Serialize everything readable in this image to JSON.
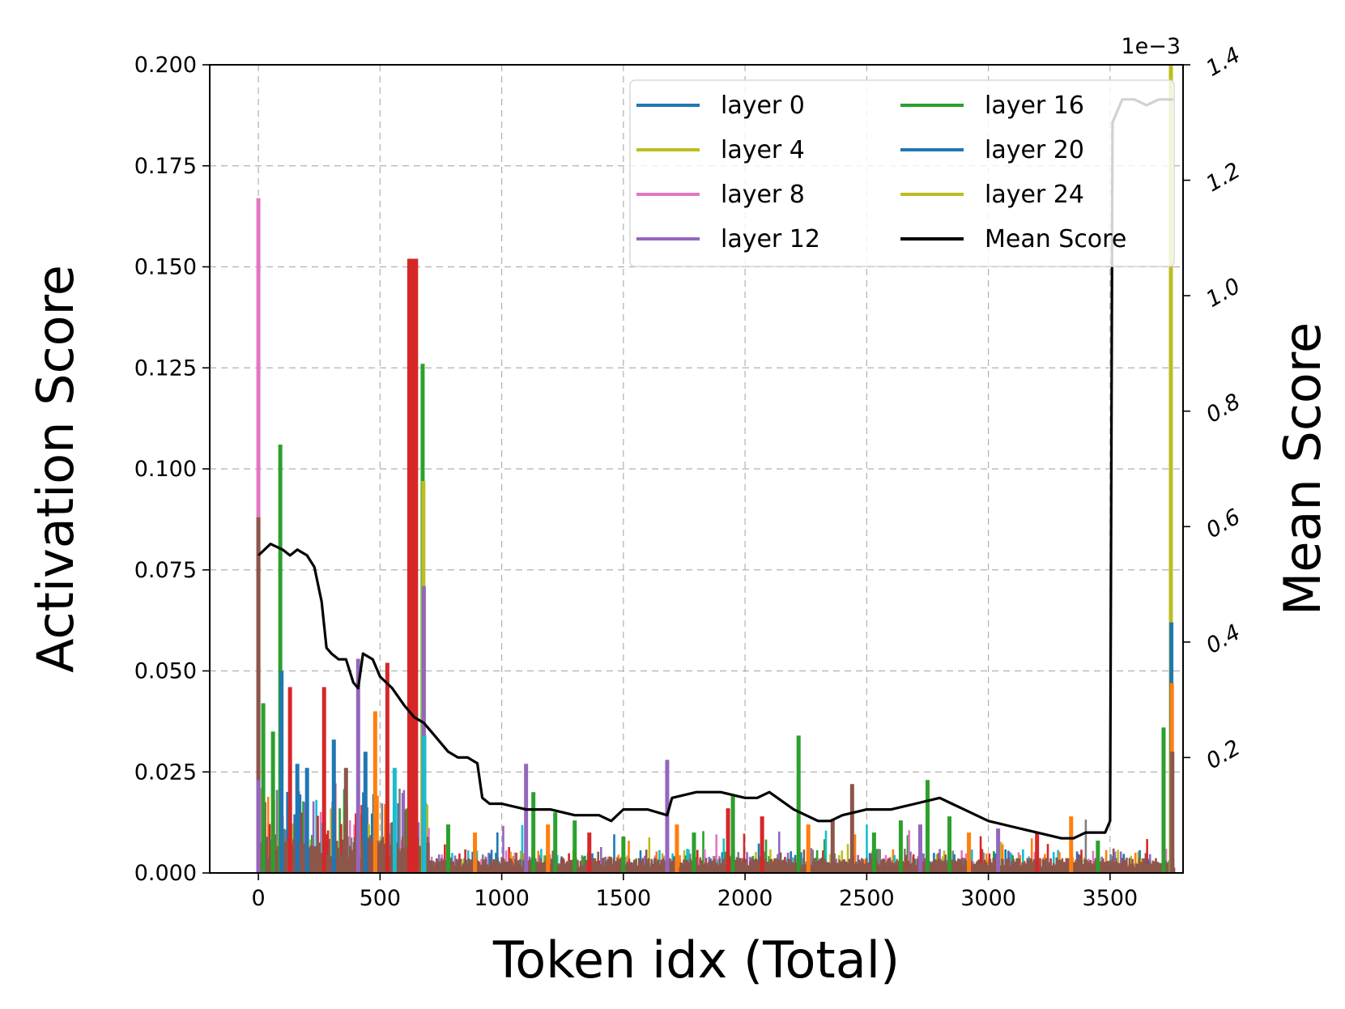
{
  "chart_data": {
    "type": "bar+line",
    "title": "",
    "xlabel": "Token idx (Total)",
    "ylabel": "Activation Score",
    "y2label": "Mean Score",
    "y2_offset_text": "1e−3",
    "xlim": [
      -200,
      3800
    ],
    "ylim": [
      0,
      0.2
    ],
    "y2lim": [
      0,
      1.4
    ],
    "x_ticks": [
      0,
      500,
      1000,
      1500,
      2000,
      2500,
      3000,
      3500
    ],
    "x_tick_labels": [
      "0",
      "500",
      "1000",
      "1500",
      "2000",
      "2500",
      "3000",
      "3500"
    ],
    "y_ticks": [
      0,
      0.025,
      0.05,
      0.075,
      0.1,
      0.125,
      0.15,
      0.175,
      0.2
    ],
    "y_tick_labels": [
      "0.000",
      "0.025",
      "0.050",
      "0.075",
      "0.100",
      "0.125",
      "0.150",
      "0.175",
      "0.200"
    ],
    "y2_ticks": [
      0.2,
      0.4,
      0.6,
      0.8,
      1.0,
      1.2,
      1.4
    ],
    "y2_tick_labels": [
      "0.2",
      "0.4",
      "0.6",
      "0.8",
      "1.0",
      "1.2",
      "1.4"
    ],
    "grid": true,
    "legend_position": "top-right",
    "legend": [
      {
        "label": "layer 0",
        "color": "#1f77b4"
      },
      {
        "label": "layer 16",
        "color": "#2ca02c"
      },
      {
        "label": "layer 4",
        "color": "#bcbd22"
      },
      {
        "label": "layer 20",
        "color": "#1f77b4"
      },
      {
        "label": "layer 8",
        "color": "#e377c2"
      },
      {
        "label": "layer 24",
        "color": "#bcbd22"
      },
      {
        "label": "layer 12",
        "color": "#9467bd"
      },
      {
        "label": "Mean Score",
        "color": "#000000"
      }
    ],
    "spike_series": [
      {
        "x": 0,
        "value": 0.167,
        "color": "#e377c2"
      },
      {
        "x": 0,
        "value": 0.088,
        "color": "#8c564b"
      },
      {
        "x": 0,
        "value": 0.023,
        "color": "#9467bd"
      },
      {
        "x": 20,
        "value": 0.042,
        "color": "#2ca02c"
      },
      {
        "x": 60,
        "value": 0.035,
        "color": "#2ca02c"
      },
      {
        "x": 90,
        "value": 0.106,
        "color": "#2ca02c"
      },
      {
        "x": 95,
        "value": 0.05,
        "color": "#1f77b4"
      },
      {
        "x": 130,
        "value": 0.046,
        "color": "#d62728"
      },
      {
        "x": 160,
        "value": 0.027,
        "color": "#1f77b4"
      },
      {
        "x": 200,
        "value": 0.026,
        "color": "#1f77b4"
      },
      {
        "x": 270,
        "value": 0.046,
        "color": "#d62728"
      },
      {
        "x": 310,
        "value": 0.033,
        "color": "#1f77b4"
      },
      {
        "x": 360,
        "value": 0.026,
        "color": "#8c564b"
      },
      {
        "x": 410,
        "value": 0.053,
        "color": "#9467bd"
      },
      {
        "x": 440,
        "value": 0.03,
        "color": "#1f77b4"
      },
      {
        "x": 480,
        "value": 0.04,
        "color": "#ff7f0e"
      },
      {
        "x": 530,
        "value": 0.052,
        "color": "#d62728"
      },
      {
        "x": 560,
        "value": 0.026,
        "color": "#17becf"
      },
      {
        "x": 620,
        "value": 0.152,
        "color": "#d62728"
      },
      {
        "x": 635,
        "value": 0.152,
        "color": "#d62728"
      },
      {
        "x": 648,
        "value": 0.152,
        "color": "#d62728"
      },
      {
        "x": 675,
        "value": 0.126,
        "color": "#2ca02c"
      },
      {
        "x": 678,
        "value": 0.097,
        "color": "#bcbd22"
      },
      {
        "x": 680,
        "value": 0.071,
        "color": "#9467bd"
      },
      {
        "x": 682,
        "value": 0.034,
        "color": "#17becf"
      },
      {
        "x": 780,
        "value": 0.012,
        "color": "#2ca02c"
      },
      {
        "x": 890,
        "value": 0.01,
        "color": "#ff7f0e"
      },
      {
        "x": 1100,
        "value": 0.027,
        "color": "#9467bd"
      },
      {
        "x": 1130,
        "value": 0.02,
        "color": "#2ca02c"
      },
      {
        "x": 1190,
        "value": 0.012,
        "color": "#ff7f0e"
      },
      {
        "x": 1220,
        "value": 0.015,
        "color": "#2ca02c"
      },
      {
        "x": 1300,
        "value": 0.013,
        "color": "#2ca02c"
      },
      {
        "x": 1360,
        "value": 0.01,
        "color": "#d62728"
      },
      {
        "x": 1500,
        "value": 0.009,
        "color": "#2ca02c"
      },
      {
        "x": 1680,
        "value": 0.028,
        "color": "#9467bd"
      },
      {
        "x": 1720,
        "value": 0.012,
        "color": "#ff7f0e"
      },
      {
        "x": 1790,
        "value": 0.01,
        "color": "#2ca02c"
      },
      {
        "x": 1930,
        "value": 0.016,
        "color": "#d62728"
      },
      {
        "x": 1950,
        "value": 0.019,
        "color": "#2ca02c"
      },
      {
        "x": 2070,
        "value": 0.014,
        "color": "#d62728"
      },
      {
        "x": 2220,
        "value": 0.034,
        "color": "#2ca02c"
      },
      {
        "x": 2260,
        "value": 0.012,
        "color": "#ff7f0e"
      },
      {
        "x": 2360,
        "value": 0.013,
        "color": "#8c564b"
      },
      {
        "x": 2440,
        "value": 0.022,
        "color": "#8c564b"
      },
      {
        "x": 2530,
        "value": 0.01,
        "color": "#2ca02c"
      },
      {
        "x": 2640,
        "value": 0.013,
        "color": "#2ca02c"
      },
      {
        "x": 2720,
        "value": 0.012,
        "color": "#9467bd"
      },
      {
        "x": 2750,
        "value": 0.023,
        "color": "#2ca02c"
      },
      {
        "x": 2840,
        "value": 0.014,
        "color": "#2ca02c"
      },
      {
        "x": 2920,
        "value": 0.01,
        "color": "#ff7f0e"
      },
      {
        "x": 3040,
        "value": 0.011,
        "color": "#9467bd"
      },
      {
        "x": 3200,
        "value": 0.01,
        "color": "#d62728"
      },
      {
        "x": 3340,
        "value": 0.014,
        "color": "#ff7f0e"
      },
      {
        "x": 3450,
        "value": 0.008,
        "color": "#2ca02c"
      },
      {
        "x": 3720,
        "value": 0.036,
        "color": "#2ca02c"
      },
      {
        "x": 3750,
        "value": 0.2,
        "color": "#bcbd22"
      },
      {
        "x": 3752,
        "value": 0.062,
        "color": "#1f77b4"
      },
      {
        "x": 3754,
        "value": 0.047,
        "color": "#ff7f0e"
      },
      {
        "x": 3756,
        "value": 0.03,
        "color": "#8c564b"
      }
    ],
    "mean_score": {
      "x": [
        0,
        50,
        100,
        130,
        160,
        200,
        230,
        260,
        280,
        300,
        330,
        360,
        390,
        410,
        430,
        470,
        500,
        550,
        600,
        640,
        680,
        720,
        780,
        820,
        860,
        900,
        920,
        950,
        1000,
        1100,
        1200,
        1300,
        1400,
        1450,
        1500,
        1600,
        1680,
        1700,
        1800,
        1900,
        2000,
        2050,
        2100,
        2200,
        2300,
        2350,
        2400,
        2500,
        2600,
        2700,
        2800,
        2850,
        2900,
        3000,
        3100,
        3200,
        3300,
        3350,
        3400,
        3480,
        3500,
        3510,
        3550,
        3600,
        3650,
        3700,
        3760
      ],
      "values": [
        0.55,
        0.57,
        0.56,
        0.55,
        0.56,
        0.55,
        0.53,
        0.47,
        0.39,
        0.38,
        0.37,
        0.37,
        0.33,
        0.32,
        0.38,
        0.37,
        0.34,
        0.32,
        0.29,
        0.27,
        0.26,
        0.24,
        0.21,
        0.2,
        0.2,
        0.19,
        0.13,
        0.12,
        0.12,
        0.11,
        0.11,
        0.1,
        0.1,
        0.09,
        0.11,
        0.11,
        0.1,
        0.13,
        0.14,
        0.14,
        0.13,
        0.13,
        0.14,
        0.11,
        0.09,
        0.09,
        0.1,
        0.11,
        0.11,
        0.12,
        0.13,
        0.12,
        0.11,
        0.09,
        0.08,
        0.07,
        0.06,
        0.06,
        0.07,
        0.07,
        0.09,
        1.3,
        1.34,
        1.34,
        1.33,
        1.34,
        1.34
      ]
    }
  }
}
